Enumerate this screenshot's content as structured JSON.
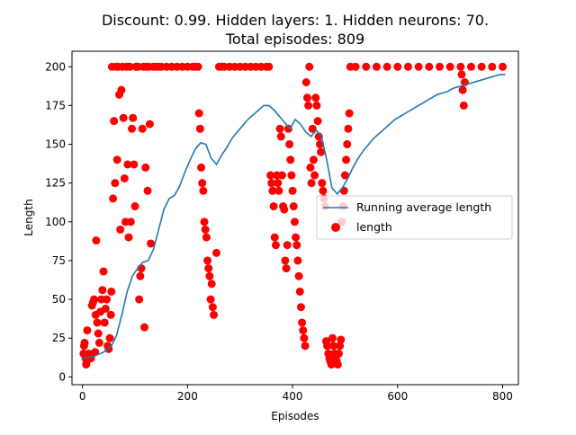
{
  "chart_data": {
    "type": "scatter",
    "title_line1": "Discount: 0.99. Hidden layers: 1. Hidden neurons: 70.",
    "title_line2": "Total episodes: 809",
    "xlabel": "Episodes",
    "ylabel": "Length",
    "xlim": [
      -20,
      830
    ],
    "ylim": [
      -5,
      210
    ],
    "xticks": [
      0,
      200,
      400,
      600,
      800
    ],
    "yticks": [
      0,
      25,
      50,
      75,
      100,
      125,
      150,
      175,
      200
    ],
    "legend_position": "center-right",
    "series": [
      {
        "name": "Running average length",
        "kind": "line",
        "color": "#1f77b4",
        "x": [
          0,
          20,
          40,
          55,
          65,
          75,
          85,
          95,
          105,
          115,
          125,
          135,
          145,
          155,
          165,
          175,
          185,
          195,
          205,
          215,
          225,
          235,
          245,
          255,
          265,
          275,
          285,
          295,
          305,
          315,
          325,
          335,
          345,
          355,
          365,
          375,
          385,
          395,
          405,
          415,
          425,
          435,
          445,
          455,
          465,
          475,
          485,
          495,
          505,
          515,
          525,
          535,
          545,
          555,
          565,
          575,
          585,
          595,
          605,
          615,
          625,
          635,
          645,
          655,
          665,
          675,
          685,
          695,
          705,
          715,
          725,
          735,
          745,
          755,
          765,
          775,
          785,
          795,
          805
        ],
        "y": [
          12,
          13,
          16,
          20,
          27,
          40,
          55,
          65,
          70,
          74,
          75,
          82,
          95,
          108,
          115,
          117,
          123,
          132,
          140,
          147,
          151,
          150,
          141,
          137,
          143,
          148,
          154,
          158,
          162,
          166,
          169,
          172,
          175,
          175,
          172,
          168,
          164,
          160,
          166,
          163,
          158,
          155,
          159,
          155,
          140,
          122,
          118,
          122,
          128,
          135,
          141,
          146,
          150,
          154,
          157,
          160,
          163,
          166,
          168,
          170,
          172,
          174,
          176,
          178,
          180,
          182,
          183,
          184,
          186,
          187,
          188,
          189,
          190,
          191,
          192,
          193,
          194,
          195,
          195
        ]
      },
      {
        "name": "length",
        "kind": "scatter",
        "color": "#ff0000",
        "x": [
          2,
          3,
          4,
          5,
          6,
          7,
          8,
          9,
          10,
          12,
          14,
          16,
          18,
          20,
          22,
          24,
          25,
          26,
          28,
          30,
          32,
          34,
          36,
          38,
          40,
          42,
          44,
          46,
          48,
          50,
          52,
          54,
          55,
          56,
          58,
          60,
          62,
          64,
          66,
          68,
          70,
          72,
          74,
          76,
          78,
          80,
          82,
          84,
          86,
          88,
          90,
          92,
          94,
          96,
          98,
          100,
          102,
          104,
          106,
          108,
          110,
          112,
          114,
          116,
          118,
          120,
          122,
          124,
          126,
          128,
          130,
          135,
          140,
          145,
          150,
          160,
          170,
          180,
          190,
          200,
          210,
          215,
          220,
          222,
          224,
          226,
          228,
          230,
          232,
          234,
          236,
          238,
          240,
          242,
          244,
          246,
          248,
          250,
          255,
          260,
          265,
          270,
          280,
          290,
          300,
          310,
          320,
          330,
          340,
          350,
          355,
          358,
          360,
          362,
          364,
          366,
          368,
          370,
          372,
          374,
          376,
          378,
          380,
          382,
          384,
          386,
          388,
          390,
          392,
          394,
          396,
          398,
          400,
          402,
          404,
          406,
          408,
          410,
          412,
          414,
          416,
          418,
          420,
          422,
          424,
          426,
          428,
          430,
          432,
          434,
          436,
          438,
          440,
          442,
          444,
          446,
          448,
          450,
          452,
          454,
          456,
          458,
          460,
          462,
          464,
          466,
          468,
          470,
          472,
          474,
          476,
          478,
          480,
          482,
          484,
          486,
          488,
          490,
          492,
          494,
          496,
          498,
          500,
          502,
          504,
          506,
          508,
          510,
          520,
          540,
          560,
          580,
          600,
          620,
          640,
          660,
          680,
          700,
          720,
          722,
          724,
          726,
          728,
          740,
          760,
          780,
          800
        ],
        "y": [
          15,
          20,
          22,
          14,
          12,
          8,
          10,
          30,
          14,
          15,
          13,
          12,
          46,
          48,
          50,
          16,
          40,
          88,
          35,
          28,
          22,
          42,
          50,
          56,
          68,
          35,
          44,
          50,
          20,
          18,
          25,
          40,
          55,
          200,
          115,
          165,
          125,
          200,
          140,
          200,
          182,
          95,
          185,
          200,
          167,
          128,
          100,
          200,
          137,
          90,
          200,
          100,
          160,
          167,
          137,
          110,
          200,
          200,
          200,
          50,
          65,
          70,
          160,
          200,
          32,
          135,
          200,
          120,
          200,
          163,
          86,
          200,
          200,
          200,
          200,
          200,
          200,
          200,
          200,
          200,
          200,
          200,
          200,
          170,
          160,
          135,
          125,
          120,
          100,
          95,
          90,
          75,
          70,
          65,
          50,
          60,
          45,
          40,
          80,
          200,
          200,
          200,
          200,
          200,
          200,
          200,
          200,
          200,
          200,
          200,
          200,
          130,
          125,
          120,
          110,
          90,
          85,
          130,
          125,
          120,
          160,
          155,
          130,
          110,
          108,
          75,
          70,
          85,
          160,
          150,
          140,
          130,
          120,
          110,
          100,
          90,
          85,
          75,
          65,
          55,
          45,
          35,
          30,
          25,
          20,
          190,
          180,
          175,
          200,
          135,
          125,
          160,
          140,
          130,
          180,
          175,
          165,
          155,
          150,
          145,
          125,
          120,
          115,
          110,
          23,
          20,
          15,
          12,
          10,
          8,
          25,
          20,
          15,
          12,
          10,
          8,
          15,
          20,
          24,
          100,
          110,
          120,
          130,
          140,
          150,
          160,
          170,
          200,
          200,
          200,
          200,
          200,
          200,
          200,
          200,
          200,
          200,
          200,
          200,
          195,
          185,
          175,
          190,
          200,
          200,
          200,
          200
        ]
      }
    ]
  }
}
